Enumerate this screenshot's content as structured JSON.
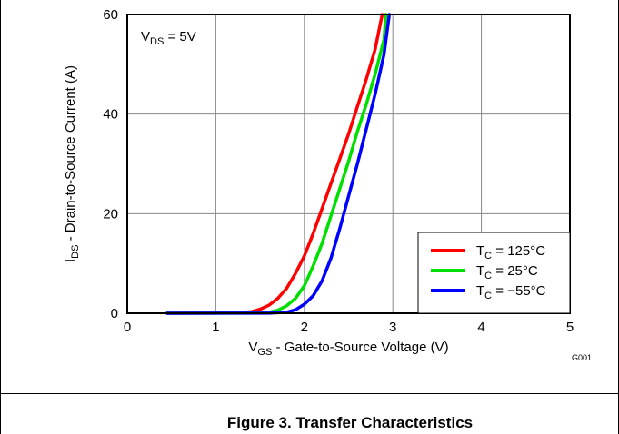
{
  "chart_data": {
    "type": "line",
    "title": "",
    "xlabel": {
      "main": "V",
      "sub": "GS",
      "rest": " - Gate-to-Source Voltage (V)"
    },
    "ylabel": {
      "main": "I",
      "sub": "DS",
      "rest": " - Drain-to-Source Current (A)"
    },
    "xlim": [
      0,
      5
    ],
    "ylim": [
      0,
      60
    ],
    "xticks": [
      "0",
      "1",
      "2",
      "3",
      "4",
      "5"
    ],
    "yticks": [
      "0",
      "20",
      "40",
      "60"
    ],
    "grid": true,
    "legend_position": "bottom-right",
    "annotation": {
      "main": "V",
      "sub": "DS",
      "rest": " = 5V"
    },
    "figure_code": "G001",
    "series": [
      {
        "name": {
          "main": "T",
          "sub": "C",
          "rest": " = 125°C"
        },
        "color": "#ff0000",
        "x": [
          0.45,
          1.2,
          1.4,
          1.5,
          1.6,
          1.7,
          1.8,
          1.9,
          2.0,
          2.1,
          2.2,
          2.3,
          2.4,
          2.5,
          2.6,
          2.7,
          2.8,
          2.88
        ],
        "y": [
          0,
          0.05,
          0.3,
          0.8,
          1.6,
          3.0,
          5.0,
          8.0,
          11.5,
          16.0,
          21.0,
          26.0,
          31.0,
          36.0,
          41.5,
          47.0,
          53.0,
          60
        ]
      },
      {
        "name": {
          "main": "T",
          "sub": "C",
          "rest": " = 25°C"
        },
        "color": "#00e000",
        "x": [
          0.45,
          1.4,
          1.6,
          1.7,
          1.8,
          1.9,
          2.0,
          2.1,
          2.2,
          2.3,
          2.4,
          2.5,
          2.6,
          2.7,
          2.8,
          2.9,
          2.92
        ],
        "y": [
          0,
          0.02,
          0.2,
          0.6,
          1.5,
          3.0,
          5.5,
          9.5,
          14.0,
          19.5,
          25.0,
          30.5,
          36.5,
          42.0,
          48.0,
          55.0,
          60
        ]
      },
      {
        "name": {
          "main": "T",
          "sub": "C",
          "rest": " = −55°C"
        },
        "color": "#0000ff",
        "x": [
          0.45,
          1.6,
          1.8,
          1.9,
          2.0,
          2.1,
          2.2,
          2.3,
          2.4,
          2.5,
          2.6,
          2.7,
          2.8,
          2.9,
          2.96
        ],
        "y": [
          0,
          0.02,
          0.2,
          0.7,
          1.8,
          3.5,
          6.5,
          11.0,
          17.0,
          23.5,
          30.0,
          37.0,
          44.0,
          52.0,
          60
        ]
      }
    ]
  },
  "caption": "Figure 3. Transfer Characteristics"
}
